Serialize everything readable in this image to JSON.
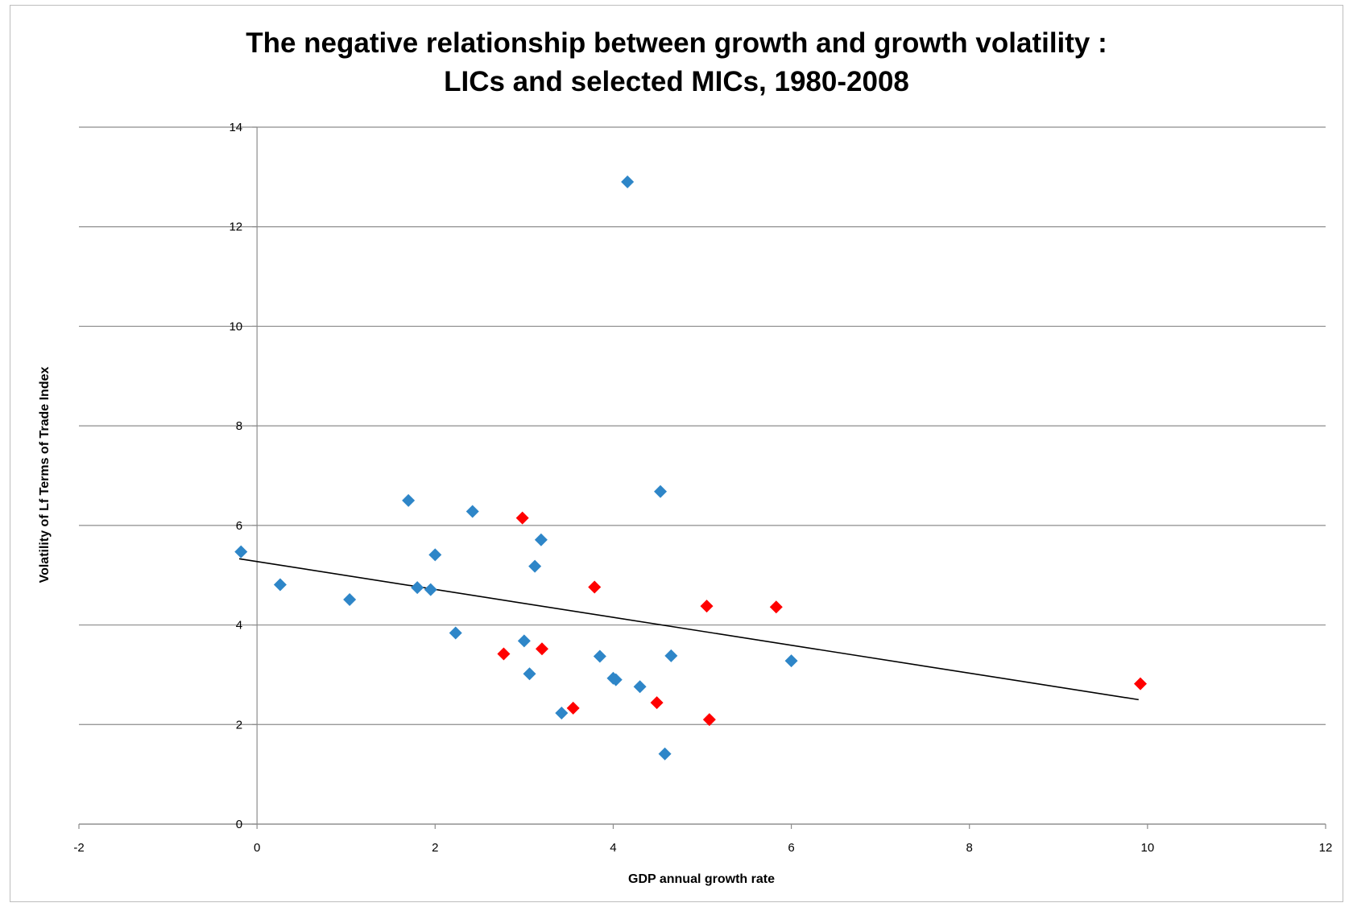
{
  "chart_data": {
    "type": "scatter",
    "title_lines": [
      "The negative relationship between growth and growth volatility :",
      "LICs and selected MICs, 1980-2008"
    ],
    "xlabel": "GDP annual  growth rate",
    "ylabel": "Volatility of Lf Terms of Trade Index",
    "xlim": [
      -2,
      12
    ],
    "ylim": [
      0,
      14
    ],
    "xticks": [
      -2,
      0,
      2,
      4,
      6,
      8,
      10,
      12
    ],
    "yticks": [
      0,
      2,
      4,
      6,
      8,
      10,
      12,
      14
    ],
    "grid": "horizontal",
    "legend": "none",
    "series": [
      {
        "color": "#2e86c8",
        "marker": "diamond",
        "points": [
          [
            -0.18,
            5.47
          ],
          [
            0.26,
            4.81
          ],
          [
            1.04,
            4.51
          ],
          [
            1.7,
            6.5
          ],
          [
            1.8,
            4.75
          ],
          [
            1.95,
            4.71
          ],
          [
            2.0,
            5.41
          ],
          [
            2.23,
            3.84
          ],
          [
            2.42,
            6.28
          ],
          [
            3.0,
            3.68
          ],
          [
            3.06,
            3.02
          ],
          [
            3.12,
            5.18
          ],
          [
            3.19,
            5.71
          ],
          [
            3.42,
            2.23
          ],
          [
            3.85,
            3.37
          ],
          [
            4.0,
            2.93
          ],
          [
            4.03,
            2.9
          ],
          [
            4.16,
            12.9
          ],
          [
            4.3,
            2.76
          ],
          [
            4.53,
            6.68
          ],
          [
            4.58,
            1.41
          ],
          [
            4.65,
            3.38
          ],
          [
            6.0,
            3.28
          ]
        ]
      },
      {
        "color": "#ff0000",
        "marker": "diamond",
        "points": [
          [
            2.77,
            3.42
          ],
          [
            2.98,
            6.15
          ],
          [
            3.2,
            3.52
          ],
          [
            3.55,
            2.33
          ],
          [
            3.79,
            4.76
          ],
          [
            4.49,
            2.44
          ],
          [
            5.05,
            4.38
          ],
          [
            5.08,
            2.1
          ],
          [
            5.83,
            4.36
          ],
          [
            9.92,
            2.82
          ]
        ]
      }
    ],
    "trendline": {
      "color": "#000000",
      "x": [
        -0.2,
        9.9
      ],
      "y": [
        5.33,
        2.5
      ]
    }
  }
}
